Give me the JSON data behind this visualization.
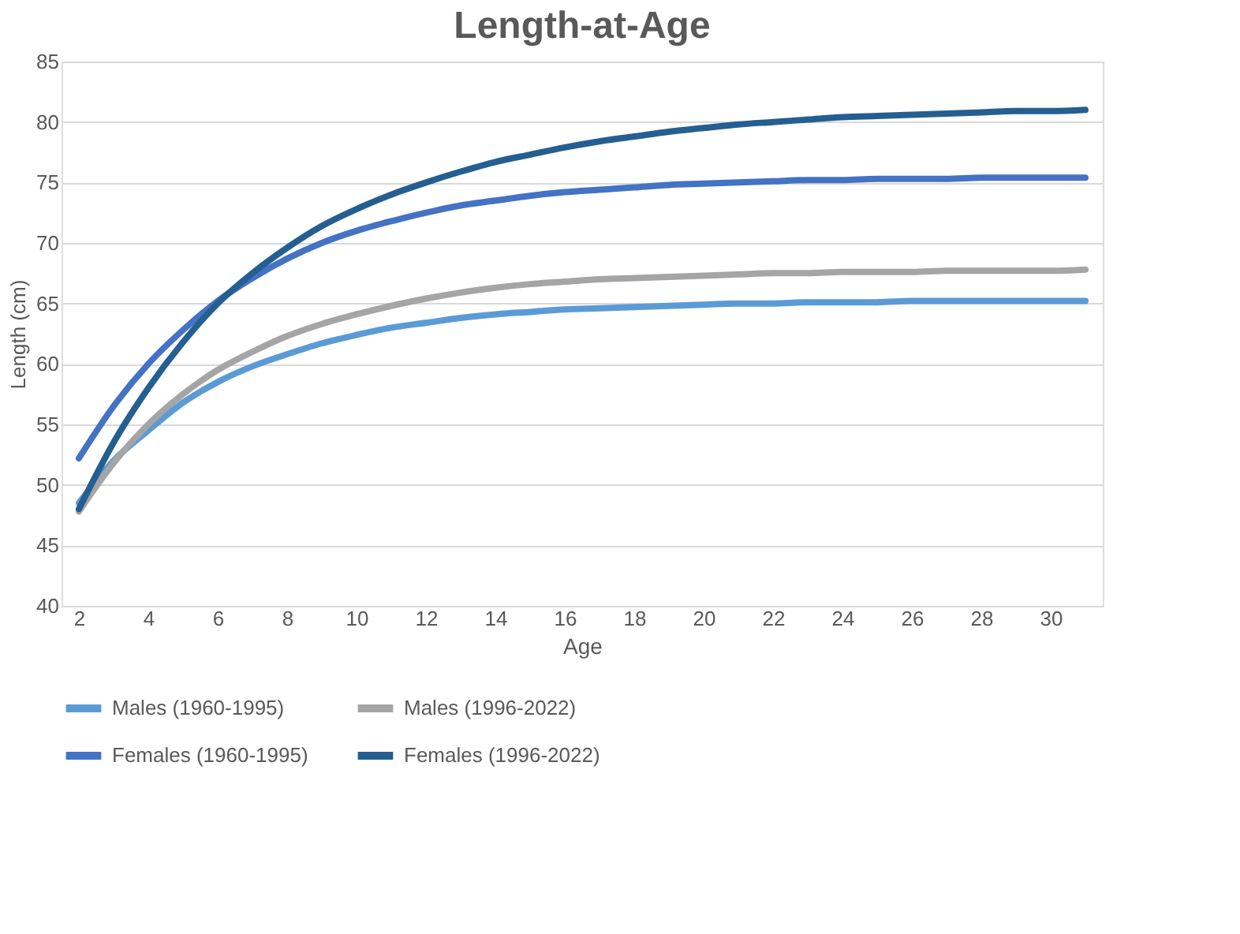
{
  "chart_data": {
    "type": "line",
    "title": "Length-at-Age",
    "xlabel": "Age",
    "ylabel": "Length (cm)",
    "x": [
      2,
      3,
      4,
      5,
      6,
      7,
      8,
      9,
      10,
      11,
      12,
      13,
      14,
      15,
      16,
      17,
      18,
      19,
      20,
      21,
      22,
      23,
      24,
      25,
      26,
      27,
      28,
      29,
      30,
      31
    ],
    "xlim": [
      1.5,
      31.5
    ],
    "xticks": [
      2,
      4,
      6,
      8,
      10,
      12,
      14,
      16,
      18,
      20,
      22,
      24,
      26,
      28,
      30
    ],
    "ylim": [
      40,
      85
    ],
    "yticks": [
      40,
      45,
      50,
      55,
      60,
      65,
      70,
      75,
      80,
      85
    ],
    "grid": "y",
    "legend": "bottom",
    "marker": "none",
    "line_style": "solid",
    "series": [
      {
        "name": "Males (1960-1995)",
        "color": "#5b9bd5",
        "values": [
          48.5,
          52,
          54.5,
          56.8,
          58.5,
          59.8,
          60.8,
          61.7,
          62.4,
          63,
          63.4,
          63.8,
          64.1,
          64.3,
          64.5,
          64.6,
          64.7,
          64.8,
          64.9,
          65,
          65,
          65.1,
          65.1,
          65.1,
          65.2,
          65.2,
          65.2,
          65.2,
          65.2,
          65.2
        ]
      },
      {
        "name": "Males (1996-2022)",
        "color": "#a5a5a5",
        "values": [
          47.8,
          51.8,
          55,
          57.5,
          59.5,
          61,
          62.3,
          63.3,
          64.1,
          64.8,
          65.4,
          65.9,
          66.3,
          66.6,
          66.8,
          67,
          67.1,
          67.2,
          67.3,
          67.4,
          67.5,
          67.5,
          67.6,
          67.6,
          67.6,
          67.7,
          67.7,
          67.7,
          67.7,
          67.8
        ]
      },
      {
        "name": "Females (1960-1995)",
        "color": "#4472c4",
        "values": [
          52.2,
          56.5,
          60,
          62.8,
          65.2,
          67.1,
          68.7,
          70,
          71,
          71.8,
          72.5,
          73.1,
          73.5,
          73.9,
          74.2,
          74.4,
          74.6,
          74.8,
          74.9,
          75,
          75.1,
          75.2,
          75.2,
          75.3,
          75.3,
          75.3,
          75.4,
          75.4,
          75.4,
          75.4
        ]
      },
      {
        "name": "Females (1996-2022)",
        "color": "#255e91",
        "values": [
          48,
          53.5,
          58,
          61.8,
          65,
          67.5,
          69.6,
          71.4,
          72.8,
          74,
          75,
          75.9,
          76.7,
          77.3,
          77.9,
          78.4,
          78.8,
          79.2,
          79.5,
          79.8,
          80,
          80.2,
          80.4,
          80.5,
          80.6,
          80.7,
          80.8,
          80.9,
          80.9,
          81
        ]
      }
    ]
  }
}
